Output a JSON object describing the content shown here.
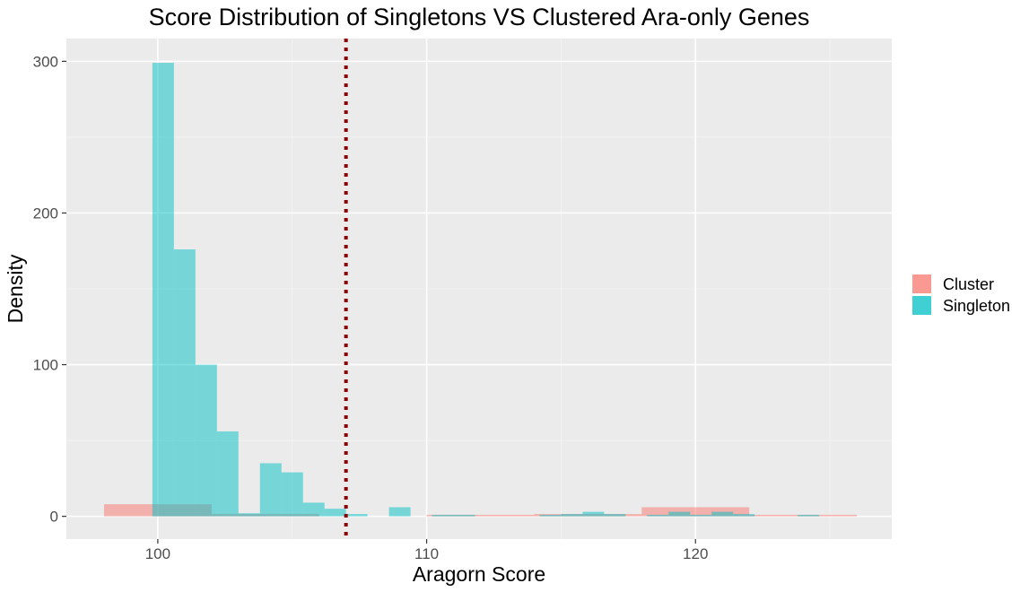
{
  "chart_data": {
    "type": "histogram",
    "title": "Score Distribution of Singletons VS Clustered Ara-only Genes",
    "xlabel": "Aragorn Score",
    "ylabel": "Density",
    "xlim": [
      96.6,
      127.3
    ],
    "ylim": [
      -15,
      315
    ],
    "x_ticks": [
      100,
      110,
      120
    ],
    "y_ticks": [
      0,
      100,
      200,
      300
    ],
    "grid": true,
    "legend_position": "right",
    "reference_line": {
      "x": 107,
      "style": "dotted",
      "color": "#8b0000"
    },
    "series": [
      {
        "name": "Cluster",
        "color": "#f8766d",
        "bins": [
          {
            "x0": 98,
            "x1": 102,
            "y": 8
          },
          {
            "x0": 102,
            "x1": 106,
            "y": 1.5
          },
          {
            "x0": 106,
            "x1": 110,
            "y": 0
          },
          {
            "x0": 110,
            "x1": 114,
            "y": 1
          },
          {
            "x0": 114,
            "x1": 118,
            "y": 1.5
          },
          {
            "x0": 118,
            "x1": 122,
            "y": 6
          },
          {
            "x0": 122,
            "x1": 126,
            "y": 1
          }
        ]
      },
      {
        "name": "Singleton",
        "color": "#00bfc4",
        "bins": [
          {
            "x0": 99.8,
            "x1": 100.6,
            "y": 299
          },
          {
            "x0": 100.6,
            "x1": 101.4,
            "y": 176
          },
          {
            "x0": 101.4,
            "x1": 102.2,
            "y": 100
          },
          {
            "x0": 102.2,
            "x1": 103.0,
            "y": 56
          },
          {
            "x0": 103.0,
            "x1": 103.8,
            "y": 2
          },
          {
            "x0": 103.8,
            "x1": 104.6,
            "y": 35
          },
          {
            "x0": 104.6,
            "x1": 105.4,
            "y": 29
          },
          {
            "x0": 105.4,
            "x1": 106.2,
            "y": 9
          },
          {
            "x0": 106.2,
            "x1": 107.0,
            "y": 5
          },
          {
            "x0": 107.0,
            "x1": 107.8,
            "y": 1.5
          },
          {
            "x0": 108.6,
            "x1": 109.4,
            "y": 6
          },
          {
            "x0": 110.2,
            "x1": 111.0,
            "y": 1
          },
          {
            "x0": 111.0,
            "x1": 111.8,
            "y": 1
          },
          {
            "x0": 114.2,
            "x1": 115.0,
            "y": 1
          },
          {
            "x0": 115.0,
            "x1": 115.8,
            "y": 1.5
          },
          {
            "x0": 115.8,
            "x1": 116.6,
            "y": 3
          },
          {
            "x0": 116.6,
            "x1": 117.4,
            "y": 1.5
          },
          {
            "x0": 118.2,
            "x1": 119.0,
            "y": 1
          },
          {
            "x0": 119.0,
            "x1": 119.8,
            "y": 3
          },
          {
            "x0": 119.8,
            "x1": 120.6,
            "y": 1
          },
          {
            "x0": 120.6,
            "x1": 121.4,
            "y": 3
          },
          {
            "x0": 121.4,
            "x1": 122.2,
            "y": 1.5
          },
          {
            "x0": 123.8,
            "x1": 124.6,
            "y": 1
          }
        ]
      }
    ]
  }
}
